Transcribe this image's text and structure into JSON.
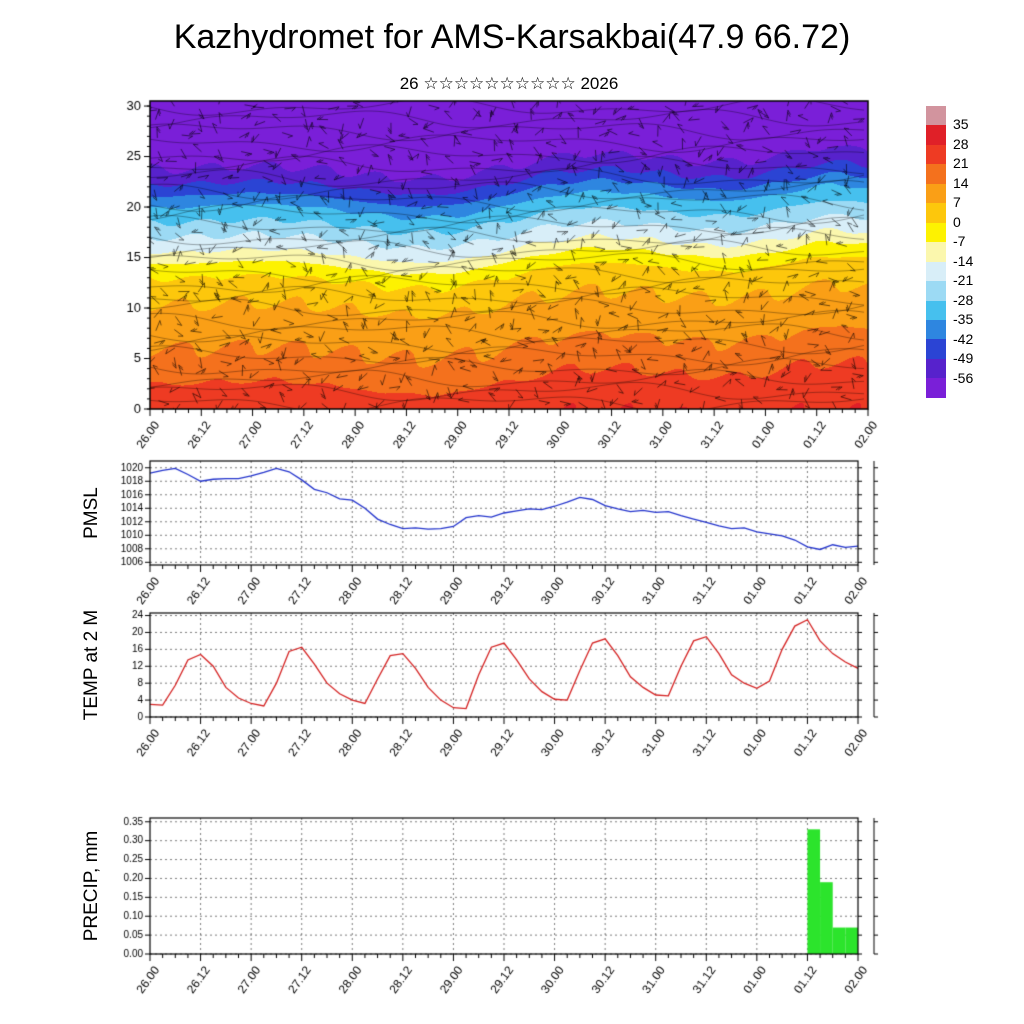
{
  "title": "Kazhydromet for AMS-Karsakbai(47.9 66.72)",
  "subtitle": "26 ☆☆☆☆☆☆☆☆☆☆ 2026",
  "time_axis": {
    "minor_step_hours": 3,
    "major_step_hours": 12,
    "tick_hours": [
      0,
      12,
      24,
      36,
      48,
      60,
      72,
      84,
      96,
      108,
      120,
      132,
      144,
      156,
      168
    ],
    "tick_labels": [
      "26.00",
      "26.12",
      "27.00",
      "27.12",
      "28.00",
      "28.12",
      "29.00",
      "29.12",
      "30.00",
      "30.12",
      "31.00",
      "31.12",
      "01.00",
      "01.12",
      "02.00"
    ],
    "data_hours": [
      0,
      3,
      6,
      9,
      12,
      15,
      18,
      21,
      24,
      27,
      30,
      33,
      36,
      39,
      42,
      45,
      48,
      51,
      54,
      57,
      60,
      63,
      66,
      69,
      72,
      75,
      78,
      81,
      84,
      87,
      90,
      93,
      96,
      99,
      102,
      105,
      108,
      111,
      114,
      117,
      120,
      123,
      126,
      129,
      132,
      135,
      138,
      141,
      144,
      147,
      150,
      153,
      156,
      159,
      162,
      165,
      168
    ]
  },
  "chart_data": [
    {
      "type": "heatmap",
      "name": "temperature-wind-height-time-cross-section",
      "ylim": [
        0,
        30.5
      ],
      "yticks": [
        0,
        5,
        10,
        15,
        20,
        25,
        30
      ],
      "colorbar_levels": [
        35,
        28,
        21,
        14,
        7,
        0,
        -7,
        -14,
        -21,
        -28,
        -35,
        -42,
        -49,
        -56
      ],
      "colorbar_colors": [
        "#d2949e",
        "#e02028",
        "#ee3b23",
        "#f4711d",
        "#fa9f16",
        "#fdc70c",
        "#fdf201",
        "#fbf7ad",
        "#d8eef8",
        "#9cdaf4",
        "#46c0ee",
        "#2e86e0",
        "#2b44d4",
        "#5722cc",
        "#7a1fd8"
      ],
      "profile": [
        {
          "y": 0,
          "t": 27
        },
        {
          "y": 2,
          "t": 24
        },
        {
          "y": 5,
          "t": 17
        },
        {
          "y": 8,
          "t": 12
        },
        {
          "y": 10,
          "t": 9
        },
        {
          "y": 12,
          "t": 5
        },
        {
          "y": 13.5,
          "t": 1
        },
        {
          "y": 14.5,
          "t": -3
        },
        {
          "y": 15.5,
          "t": -9
        },
        {
          "y": 16.5,
          "t": -15
        },
        {
          "y": 18,
          "t": -22
        },
        {
          "y": 19.5,
          "t": -29
        },
        {
          "y": 21,
          "t": -36
        },
        {
          "y": 22.5,
          "t": -46
        },
        {
          "y": 24,
          "t": -54
        },
        {
          "y": 25.5,
          "t": -59
        },
        {
          "y": 30.5,
          "t": -64
        }
      ],
      "overlay": "wind-barbs-and-streamline-contours"
    },
    {
      "type": "line",
      "ylabel": "PMSL",
      "color": "#2233cc",
      "ylim": [
        1005.6,
        1021
      ],
      "yticks": [
        1006,
        1008,
        1010,
        1012,
        1014,
        1016,
        1018,
        1020
      ],
      "values": [
        1019.2,
        1019.6,
        1019.9,
        1019.0,
        1018.0,
        1018.3,
        1018.4,
        1018.4,
        1018.8,
        1019.3,
        1019.9,
        1019.4,
        1018.2,
        1016.8,
        1016.3,
        1015.4,
        1015.2,
        1014.0,
        1012.4,
        1011.6,
        1011.0,
        1011.1,
        1010.9,
        1011.0,
        1011.3,
        1012.6,
        1012.9,
        1012.7,
        1013.3,
        1013.6,
        1013.9,
        1013.8,
        1014.3,
        1014.9,
        1015.6,
        1015.3,
        1014.4,
        1013.9,
        1013.5,
        1013.7,
        1013.4,
        1013.5,
        1012.9,
        1012.4,
        1011.9,
        1011.4,
        1011.0,
        1011.1,
        1010.5,
        1010.2,
        1009.9,
        1009.3,
        1008.3,
        1007.9,
        1008.6,
        1008.2,
        1008.4
      ]
    },
    {
      "type": "line",
      "ylabel": "TEMP at 2 M",
      "color": "#d42222",
      "ylim": [
        0,
        24.6
      ],
      "yticks": [
        0,
        4,
        8,
        12,
        16,
        20,
        24
      ],
      "values": [
        3.0,
        2.8,
        7.5,
        13.5,
        14.8,
        12.0,
        7.0,
        4.5,
        3.2,
        2.6,
        8.0,
        15.5,
        16.5,
        12.5,
        8.0,
        5.5,
        4.0,
        3.2,
        9.0,
        14.5,
        15.0,
        11.5,
        7.0,
        4.0,
        2.2,
        2.0,
        10.0,
        16.5,
        17.5,
        13.5,
        9.0,
        6.0,
        4.2,
        4.0,
        11.0,
        17.5,
        18.5,
        14.5,
        9.5,
        7.0,
        5.2,
        5.0,
        12.0,
        18.0,
        19.0,
        15.0,
        10.0,
        8.0,
        6.8,
        8.5,
        16.0,
        21.5,
        23.0,
        18.0,
        15.0,
        13.0,
        11.5
      ]
    },
    {
      "type": "bar",
      "ylabel": "PRECIP, mm",
      "color": "#2ce42c",
      "ylim": [
        0,
        0.36
      ],
      "yticks": [
        0,
        0.05,
        0.1,
        0.15,
        0.2,
        0.25,
        0.3,
        0.35
      ],
      "values": [
        0,
        0,
        0,
        0,
        0,
        0,
        0,
        0,
        0,
        0,
        0,
        0,
        0,
        0,
        0,
        0,
        0,
        0,
        0,
        0,
        0,
        0,
        0,
        0,
        0,
        0,
        0,
        0,
        0,
        0,
        0,
        0,
        0,
        0,
        0,
        0,
        0,
        0,
        0,
        0,
        0,
        0,
        0,
        0,
        0,
        0,
        0,
        0,
        0,
        0,
        0,
        0,
        0,
        0.33,
        0.19,
        0.07,
        0.07
      ]
    }
  ]
}
